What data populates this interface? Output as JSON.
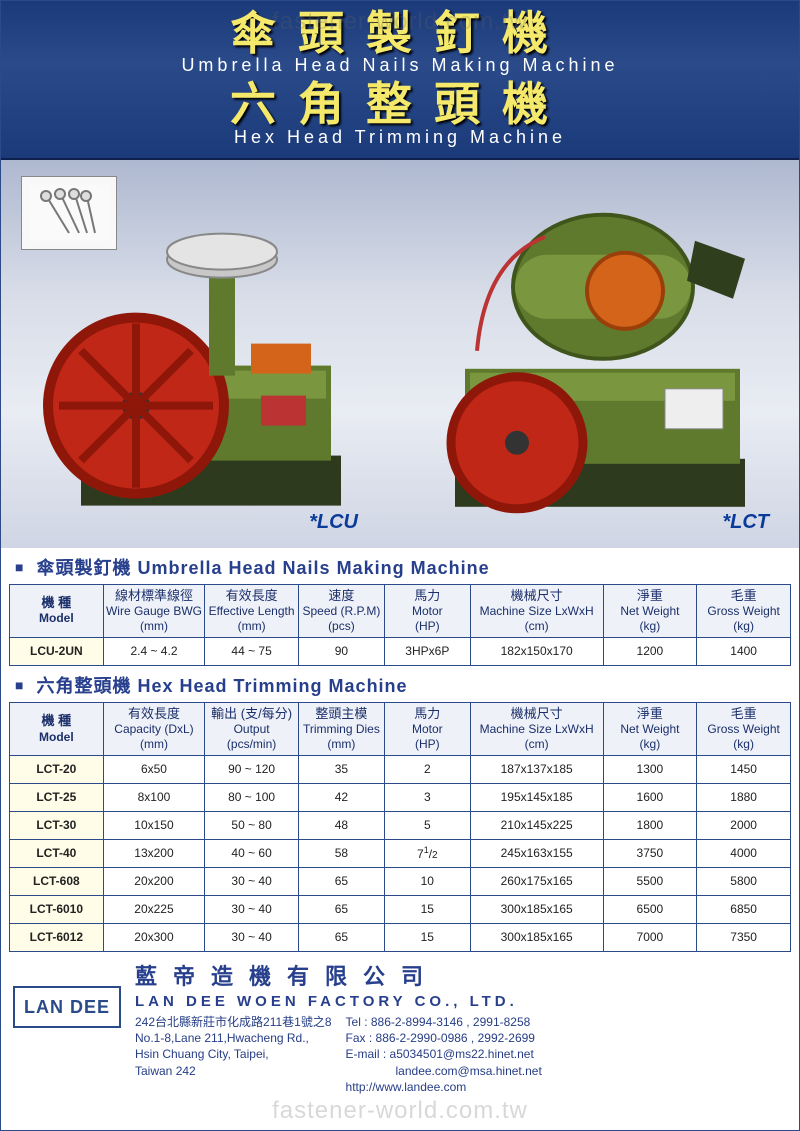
{
  "watermark": "fastener-world.com.tw",
  "header": {
    "cn1": "傘頭製釘機",
    "en1": "Umbrella Head Nails Making Machine",
    "cn2": "六角整頭機",
    "en2": "Hex Head Trimming Machine"
  },
  "product_area": {
    "thumb_icon": "nails-photo",
    "models": {
      "left": "*LCU",
      "right": "*LCT"
    },
    "colors": {
      "machine_body": "#5f7a2c",
      "machine_body_light": "#7a9740",
      "wheel": "#c02717",
      "wheel_rim": "#8e170a",
      "accent_orange": "#d4641a",
      "base_dark": "#2e3a1d",
      "metal": "#c8c8c8"
    }
  },
  "section1": {
    "title_cn": "傘頭製釘機",
    "title_en": "Umbrella Head Nails Making Machine",
    "columns": [
      {
        "cn": "機 種",
        "en": "Model",
        "unit": ""
      },
      {
        "cn": "線材標準線徑",
        "en": "Wire Gauge BWG",
        "unit": "(mm)"
      },
      {
        "cn": "有效長度",
        "en": "Effective Length",
        "unit": "(mm)"
      },
      {
        "cn": "速度",
        "en": "Speed (R.P.M)",
        "unit": "(pcs)"
      },
      {
        "cn": "馬力",
        "en": "Motor",
        "unit": "(HP)"
      },
      {
        "cn": "機械尺寸",
        "en": "Machine Size LxWxH",
        "unit": "(cm)"
      },
      {
        "cn": "淨重",
        "en": "Net Weight",
        "unit": "(kg)"
      },
      {
        "cn": "毛重",
        "en": "Gross Weight",
        "unit": "(kg)"
      }
    ],
    "rows": [
      [
        "LCU-2UN",
        "2.4 ~ 4.2",
        "44 ~ 75",
        "90",
        "3HPx6P",
        "182x150x170",
        "1200",
        "1400"
      ]
    ]
  },
  "section2": {
    "title_cn": "六角整頭機",
    "title_en": "Hex Head Trimming Machine",
    "columns": [
      {
        "cn": "機 種",
        "en": "Model",
        "unit": ""
      },
      {
        "cn": "有效長度",
        "en": "Capacity (DxL)",
        "unit": "(mm)"
      },
      {
        "cn": "輸出 (支/每分)",
        "en": "Output",
        "unit": "(pcs/min)"
      },
      {
        "cn": "整頭主模",
        "en": "Trimming Dies",
        "unit": "(mm)"
      },
      {
        "cn": "馬力",
        "en": "Motor",
        "unit": "(HP)"
      },
      {
        "cn": "機械尺寸",
        "en": "Machine Size LxWxH",
        "unit": "(cm)"
      },
      {
        "cn": "淨重",
        "en": "Net Weight",
        "unit": "(kg)"
      },
      {
        "cn": "毛重",
        "en": "Gross Weight",
        "unit": "(kg)"
      }
    ],
    "rows": [
      [
        "LCT-20",
        "6x50",
        "90 ~ 120",
        "35",
        "2",
        "187x137x185",
        "1300",
        "1450"
      ],
      [
        "LCT-25",
        "8x100",
        "80 ~ 100",
        "42",
        "3",
        "195x145x185",
        "1600",
        "1880"
      ],
      [
        "LCT-30",
        "10x150",
        "50 ~ 80",
        "48",
        "5",
        "210x145x225",
        "1800",
        "2000"
      ],
      [
        "LCT-40",
        "13x200",
        "40 ~ 60",
        "58",
        "7½",
        "245x163x155",
        "3750",
        "4000"
      ],
      [
        "LCT-608",
        "20x200",
        "30 ~ 40",
        "65",
        "10",
        "260x175x165",
        "5500",
        "5800"
      ],
      [
        "LCT-6010",
        "20x225",
        "30 ~ 40",
        "65",
        "15",
        "300x185x165",
        "6500",
        "6850"
      ],
      [
        "LCT-6012",
        "20x300",
        "30 ~ 40",
        "65",
        "15",
        "300x185x165",
        "7000",
        "7350"
      ]
    ]
  },
  "footer": {
    "logo": "LAN DEE",
    "company_cn": "藍帝造機有限公司",
    "company_en": "LAN DEE WOEN FACTORY CO., LTD.",
    "addr_cn": "242台北縣新莊市化成路211巷1號之8",
    "addr_en1": "No.1-8,Lane 211,Hwacheng Rd.,",
    "addr_en2": "Hsin Chuang City, Taipei,",
    "addr_en3": "Taiwan 242",
    "tel": "Tel : 886-2-8994-3146 , 2991-8258",
    "fax": "Fax : 886-2-2990-0986 , 2992-2699",
    "email": "E-mail : a5034501@ms22.hinet.net",
    "email2": "landee.com@msa.hinet.net",
    "url": "http://www.landee.com"
  },
  "colors": {
    "header_bg": "#1b3a7a",
    "header_yellow": "#f5e96b",
    "border": "#2a4a8a",
    "title_blue": "#273f8c",
    "th_bg": "#eef1f8",
    "model_bg": "#fffde8"
  }
}
